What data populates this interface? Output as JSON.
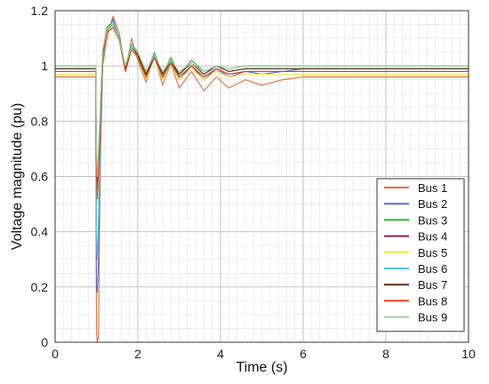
{
  "chart_data": {
    "type": "line",
    "title": "",
    "xlabel": "Time (s)",
    "ylabel": "Voltage magnitude (pu)",
    "xlim": [
      0,
      10
    ],
    "ylim": [
      0,
      1.2
    ],
    "x_ticks": [
      "0",
      "2",
      "4",
      "6",
      "8",
      "10"
    ],
    "y_ticks": [
      "0",
      "0.2",
      "0.4",
      "0.6",
      "0.8",
      "1",
      "1.2"
    ],
    "grid": true,
    "legend_position": "bottom-right",
    "series": [
      {
        "name": "Bus 1",
        "color": "#e0703a",
        "x": [
          0,
          0.98,
          1.0,
          1.02,
          1.05,
          1.08,
          1.1,
          1.15,
          1.25,
          1.4,
          1.55,
          1.7,
          1.85,
          2.0,
          2.2,
          2.4,
          2.6,
          2.8,
          3.0,
          3.3,
          3.6,
          3.9,
          4.2,
          4.6,
          5.0,
          5.5,
          6.0,
          10
        ],
        "y": [
          0.96,
          0.96,
          0.05,
          0.0,
          0.02,
          0.5,
          0.7,
          1.0,
          1.1,
          1.18,
          1.12,
          0.98,
          1.1,
          1.02,
          0.94,
          1.04,
          0.93,
          1.01,
          0.92,
          0.98,
          0.91,
          0.96,
          0.92,
          0.95,
          0.93,
          0.95,
          0.96,
          0.96
        ]
      },
      {
        "name": "Bus 2",
        "color": "#5a6ccd",
        "x": [
          0,
          0.98,
          1.0,
          1.02,
          1.05,
          1.08,
          1.1,
          1.15,
          1.25,
          1.4,
          1.55,
          1.7,
          1.85,
          2.0,
          2.2,
          2.4,
          2.6,
          2.8,
          3.0,
          3.3,
          3.6,
          3.9,
          4.2,
          4.6,
          5.0,
          5.5,
          6.0,
          10
        ],
        "y": [
          0.99,
          0.99,
          0.2,
          0.18,
          0.3,
          0.55,
          0.75,
          1.02,
          1.12,
          1.17,
          1.1,
          0.99,
          1.08,
          1.04,
          0.96,
          1.05,
          0.95,
          1.02,
          0.95,
          1.0,
          0.95,
          0.99,
          0.96,
          0.98,
          0.97,
          0.98,
          0.99,
          0.99
        ]
      },
      {
        "name": "Bus 3",
        "color": "#2ab52a",
        "x": [
          0,
          0.98,
          1.0,
          1.02,
          1.05,
          1.08,
          1.1,
          1.15,
          1.25,
          1.4,
          1.55,
          1.7,
          1.85,
          2.0,
          2.2,
          2.4,
          2.6,
          2.8,
          3.0,
          3.3,
          3.6,
          3.9,
          4.2,
          4.6,
          5.0,
          5.5,
          6.0,
          10
        ],
        "y": [
          1.0,
          1.0,
          0.55,
          0.5,
          0.6,
          0.7,
          0.85,
          1.05,
          1.14,
          1.16,
          1.1,
          1.0,
          1.08,
          1.05,
          0.97,
          1.05,
          0.97,
          1.03,
          0.97,
          1.02,
          0.98,
          1.0,
          0.99,
          1.0,
          1.0,
          1.0,
          1.0,
          1.0
        ]
      },
      {
        "name": "Bus 4",
        "color": "#8b1a4a",
        "x": [
          0,
          0.98,
          1.0,
          1.02,
          1.05,
          1.08,
          1.1,
          1.15,
          1.25,
          1.4,
          1.55,
          1.7,
          1.85,
          2.0,
          2.2,
          2.4,
          2.6,
          2.8,
          3.0,
          3.3,
          3.6,
          3.9,
          4.2,
          4.6,
          5.0,
          5.5,
          6.0,
          10
        ],
        "y": [
          0.98,
          0.98,
          0.6,
          0.52,
          0.62,
          0.72,
          0.85,
          1.04,
          1.13,
          1.15,
          1.1,
          0.99,
          1.07,
          1.04,
          0.96,
          1.04,
          0.96,
          1.02,
          0.96,
          1.0,
          0.96,
          0.99,
          0.97,
          0.98,
          0.98,
          0.98,
          0.98,
          0.98
        ]
      },
      {
        "name": "Bus 5",
        "color": "#e8e84a",
        "x": [
          0,
          0.98,
          1.0,
          1.02,
          1.05,
          1.08,
          1.1,
          1.15,
          1.25,
          1.4,
          1.55,
          1.7,
          1.85,
          2.0,
          2.2,
          2.4,
          2.6,
          2.8,
          3.0,
          3.3,
          3.6,
          3.9,
          4.2,
          4.6,
          5.0,
          5.5,
          6.0,
          10
        ],
        "y": [
          0.97,
          0.97,
          0.58,
          0.5,
          0.6,
          0.7,
          0.84,
          1.03,
          1.12,
          1.15,
          1.09,
          0.98,
          1.06,
          1.03,
          0.95,
          1.03,
          0.95,
          1.01,
          0.95,
          0.99,
          0.95,
          0.98,
          0.96,
          0.97,
          0.97,
          0.97,
          0.97,
          0.97
        ]
      },
      {
        "name": "Bus 6",
        "color": "#58c1cf",
        "x": [
          0,
          0.98,
          1.0,
          1.02,
          1.05,
          1.08,
          1.1,
          1.15,
          1.25,
          1.4,
          1.55,
          1.7,
          1.85,
          2.0,
          2.2,
          2.4,
          2.6,
          2.8,
          3.0,
          3.3,
          3.6,
          3.9,
          4.2,
          4.6,
          5.0,
          5.5,
          6.0,
          10
        ],
        "y": [
          0.99,
          0.99,
          0.4,
          0.3,
          0.45,
          0.65,
          0.82,
          1.03,
          1.13,
          1.16,
          1.1,
          0.99,
          1.08,
          1.04,
          0.97,
          1.05,
          0.96,
          1.02,
          0.97,
          1.01,
          0.97,
          1.0,
          0.98,
          0.99,
          0.99,
          0.99,
          0.99,
          0.99
        ]
      },
      {
        "name": "Bus 7",
        "color": "#5a2a14",
        "x": [
          0,
          0.98,
          1.0,
          1.02,
          1.05,
          1.08,
          1.1,
          1.15,
          1.25,
          1.4,
          1.55,
          1.7,
          1.85,
          2.0,
          2.2,
          2.4,
          2.6,
          2.8,
          3.0,
          3.3,
          3.6,
          3.9,
          4.2,
          4.6,
          5.0,
          5.5,
          6.0,
          10
        ],
        "y": [
          0.99,
          0.99,
          0.65,
          0.55,
          0.65,
          0.75,
          0.87,
          1.05,
          1.13,
          1.15,
          1.09,
          0.99,
          1.07,
          1.04,
          0.97,
          1.04,
          0.97,
          1.02,
          0.97,
          1.01,
          0.97,
          1.0,
          0.98,
          0.99,
          0.99,
          0.99,
          0.99,
          0.99
        ]
      },
      {
        "name": "Bus 8",
        "color": "#e0401a",
        "x": [
          0,
          0.98,
          1.0,
          1.02,
          1.05,
          1.08,
          1.1,
          1.15,
          1.25,
          1.4,
          1.55,
          1.7,
          1.85,
          2.0,
          2.2,
          2.4,
          2.6,
          2.8,
          3.0,
          3.3,
          3.6,
          3.9,
          4.2,
          4.6,
          5.0,
          5.5,
          6.0,
          10
        ],
        "y": [
          0.98,
          0.98,
          0.62,
          0.52,
          0.62,
          0.72,
          0.86,
          1.04,
          1.12,
          1.14,
          1.09,
          0.98,
          1.06,
          1.03,
          0.96,
          1.03,
          0.96,
          1.01,
          0.96,
          1.0,
          0.96,
          0.99,
          0.97,
          0.98,
          0.98,
          0.98,
          0.98,
          0.98
        ]
      },
      {
        "name": "Bus 9",
        "color": "#9bcf9b",
        "x": [
          0,
          0.98,
          1.0,
          1.02,
          1.05,
          1.08,
          1.1,
          1.15,
          1.25,
          1.4,
          1.55,
          1.7,
          1.85,
          2.0,
          2.2,
          2.4,
          2.6,
          2.8,
          3.0,
          3.3,
          3.6,
          3.9,
          4.2,
          4.6,
          5.0,
          5.5,
          6.0,
          10
        ],
        "y": [
          1.0,
          1.0,
          0.7,
          0.6,
          0.7,
          0.8,
          0.9,
          1.06,
          1.13,
          1.15,
          1.09,
          1.0,
          1.07,
          1.05,
          0.98,
          1.04,
          0.98,
          1.02,
          0.98,
          1.01,
          0.98,
          1.0,
          0.99,
          1.0,
          1.0,
          1.0,
          1.0,
          1.0
        ]
      }
    ]
  }
}
